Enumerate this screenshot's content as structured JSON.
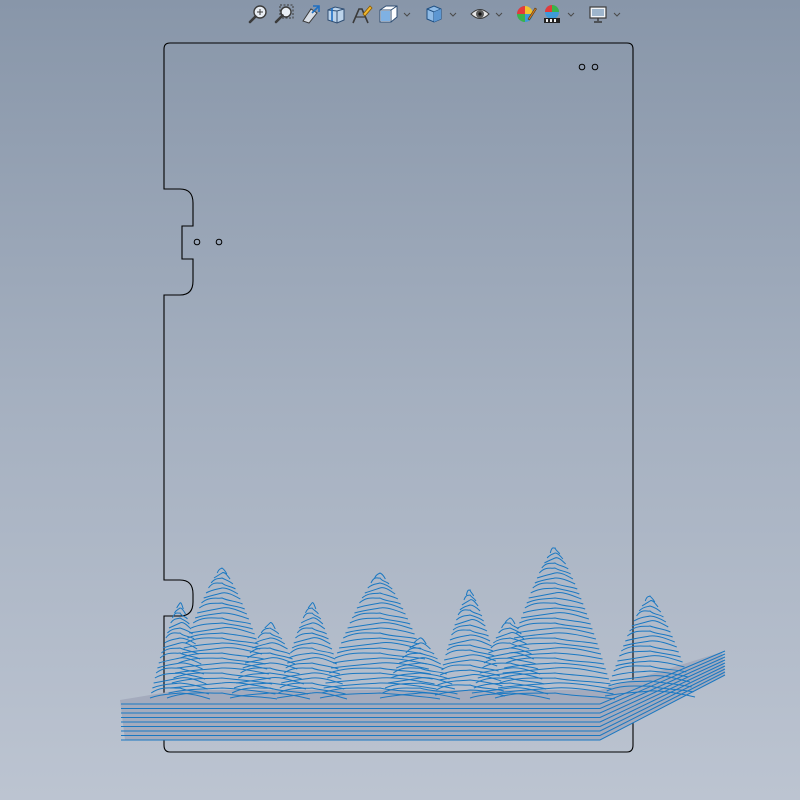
{
  "toolbar": {
    "buttons": [
      {
        "id": "zoom-to-fit",
        "icon": "zoom-to-fit-icon",
        "has_dropdown": false
      },
      {
        "id": "zoom-to-area",
        "icon": "zoom-area-icon",
        "has_dropdown": false
      },
      {
        "id": "previous-view",
        "icon": "previous-view-icon",
        "has_dropdown": false
      },
      {
        "id": "section-view",
        "icon": "section-view-icon",
        "has_dropdown": false
      },
      {
        "id": "dynamic-annotation",
        "icon": "annotation-view-icon",
        "has_dropdown": false
      },
      {
        "id": "view-orientation",
        "icon": "view-orientation-icon",
        "has_dropdown": true
      },
      {
        "id": "display-style",
        "icon": "display-style-icon",
        "has_dropdown": true
      },
      {
        "id": "hide-show-items",
        "icon": "hide-show-eye-icon",
        "has_dropdown": true
      },
      {
        "id": "edit-appearance",
        "icon": "edit-appearance-icon",
        "has_dropdown": false
      },
      {
        "id": "apply-scene",
        "icon": "apply-scene-icon",
        "has_dropdown": true
      },
      {
        "id": "view-settings",
        "icon": "monitor-icon",
        "has_dropdown": true
      }
    ]
  },
  "colors": {
    "background_top": "#8896a9",
    "background_bottom": "#bcc4d1",
    "outline": "#000000",
    "contour": "#1a78c2",
    "model_fill": "#a4abbd"
  }
}
